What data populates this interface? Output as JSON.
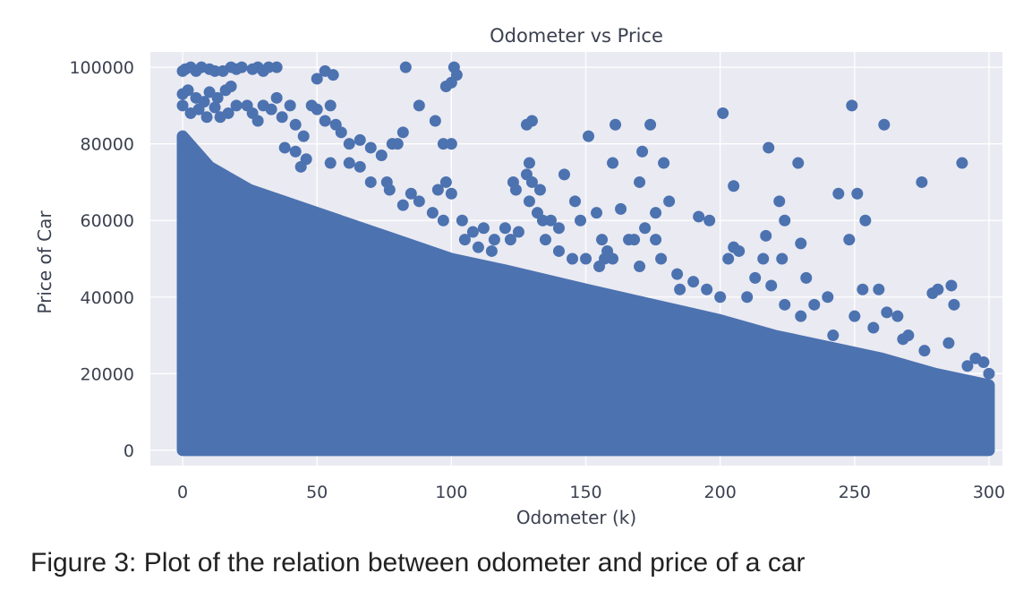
{
  "chart_data": {
    "type": "scatter",
    "title": "Odometer vs Price",
    "xlabel": "Odometer (k)",
    "ylabel": "Price of Car",
    "xlim": [
      -12,
      305
    ],
    "ylim": [
      -4000,
      104000
    ],
    "xticks": [
      0,
      50,
      100,
      150,
      200,
      250,
      300
    ],
    "yticks": [
      0,
      20000,
      40000,
      60000,
      80000,
      100000
    ],
    "grid": true,
    "background": "#eaeaf2",
    "marker_color": "#4c72b0",
    "upper_envelope": [
      [
        0,
        82000
      ],
      [
        10,
        74000
      ],
      [
        25,
        68000
      ],
      [
        50,
        62000
      ],
      [
        75,
        56000
      ],
      [
        100,
        50000
      ],
      [
        120,
        47000
      ],
      [
        150,
        42000
      ],
      [
        175,
        38000
      ],
      [
        200,
        34000
      ],
      [
        220,
        30000
      ],
      [
        240,
        27000
      ],
      [
        260,
        24000
      ],
      [
        280,
        20000
      ],
      [
        300,
        17000
      ]
    ],
    "points": [
      [
        0,
        99000
      ],
      [
        1,
        99500
      ],
      [
        3,
        100000
      ],
      [
        5,
        99000
      ],
      [
        7,
        100000
      ],
      [
        10,
        99500
      ],
      [
        12,
        99000
      ],
      [
        15,
        99000
      ],
      [
        18,
        100000
      ],
      [
        20,
        99500
      ],
      [
        22,
        100000
      ],
      [
        26,
        99500
      ],
      [
        28,
        100000
      ],
      [
        30,
        99000
      ],
      [
        32,
        100000
      ],
      [
        35,
        100000
      ],
      [
        0,
        93000
      ],
      [
        2,
        94000
      ],
      [
        5,
        92000
      ],
      [
        8,
        91000
      ],
      [
        10,
        93500
      ],
      [
        13,
        92000
      ],
      [
        16,
        94000
      ],
      [
        18,
        95000
      ],
      [
        0,
        90000
      ],
      [
        3,
        88000
      ],
      [
        6,
        89000
      ],
      [
        9,
        87000
      ],
      [
        12,
        89500
      ],
      [
        14,
        87000
      ],
      [
        17,
        88000
      ],
      [
        20,
        90000
      ],
      [
        24,
        90000
      ],
      [
        26,
        88000
      ],
      [
        28,
        86000
      ],
      [
        30,
        90000
      ],
      [
        33,
        89000
      ],
      [
        35,
        92000
      ],
      [
        37,
        87000
      ],
      [
        40,
        90000
      ],
      [
        42,
        85000
      ],
      [
        45,
        82000
      ],
      [
        48,
        90000
      ],
      [
        50,
        89000
      ],
      [
        53,
        86000
      ],
      [
        55,
        90000
      ],
      [
        57,
        85000
      ],
      [
        59,
        83000
      ],
      [
        50,
        97000
      ],
      [
        53,
        99000
      ],
      [
        56,
        98000
      ],
      [
        83,
        100000
      ],
      [
        101,
        100000
      ],
      [
        102,
        98000
      ],
      [
        98,
        95000
      ],
      [
        100,
        96000
      ],
      [
        88,
        90000
      ],
      [
        94,
        86000
      ],
      [
        82,
        83000
      ],
      [
        78,
        80000
      ],
      [
        80,
        80000
      ],
      [
        97,
        80000
      ],
      [
        100,
        80000
      ],
      [
        62,
        80000
      ],
      [
        66,
        81000
      ],
      [
        70,
        79000
      ],
      [
        74,
        77000
      ],
      [
        42,
        78000
      ],
      [
        46,
        76000
      ],
      [
        38,
        79000
      ],
      [
        44,
        74000
      ],
      [
        55,
        75000
      ],
      [
        62,
        75000
      ],
      [
        66,
        74000
      ],
      [
        70,
        70000
      ],
      [
        76,
        70000
      ],
      [
        77,
        68000
      ],
      [
        98,
        70000
      ],
      [
        100,
        67000
      ],
      [
        95,
        68000
      ],
      [
        85,
        67000
      ],
      [
        88,
        65000
      ],
      [
        82,
        64000
      ],
      [
        93,
        62000
      ],
      [
        97,
        60000
      ],
      [
        104,
        60000
      ],
      [
        108,
        57000
      ],
      [
        112,
        58000
      ],
      [
        105,
        55000
      ],
      [
        116,
        55000
      ],
      [
        120,
        58000
      ],
      [
        125,
        57000
      ],
      [
        122,
        55000
      ],
      [
        123,
        70000
      ],
      [
        124,
        68000
      ],
      [
        128,
        85000
      ],
      [
        130,
        86000
      ],
      [
        129,
        75000
      ],
      [
        128,
        72000
      ],
      [
        130,
        70000
      ],
      [
        133,
        68000
      ],
      [
        129,
        65000
      ],
      [
        134,
        60000
      ],
      [
        132,
        62000
      ],
      [
        137,
        60000
      ],
      [
        140,
        58000
      ],
      [
        142,
        72000
      ],
      [
        146,
        65000
      ],
      [
        148,
        60000
      ],
      [
        151,
        82000
      ],
      [
        156,
        55000
      ],
      [
        158,
        52000
      ],
      [
        154,
        62000
      ],
      [
        150,
        50000
      ],
      [
        157,
        50000
      ],
      [
        161,
        85000
      ],
      [
        160,
        75000
      ],
      [
        163,
        63000
      ],
      [
        166,
        55000
      ],
      [
        168,
        55000
      ],
      [
        170,
        70000
      ],
      [
        171,
        78000
      ],
      [
        172,
        58000
      ],
      [
        174,
        85000
      ],
      [
        176,
        62000
      ],
      [
        176,
        55000
      ],
      [
        178,
        50000
      ],
      [
        179,
        75000
      ],
      [
        181,
        65000
      ],
      [
        184,
        46000
      ],
      [
        192,
        61000
      ],
      [
        196,
        60000
      ],
      [
        201,
        88000
      ],
      [
        205,
        69000
      ],
      [
        205,
        53000
      ],
      [
        207,
        52000
      ],
      [
        203,
        50000
      ],
      [
        213,
        45000
      ],
      [
        216,
        50000
      ],
      [
        217,
        56000
      ],
      [
        218,
        79000
      ],
      [
        219,
        43000
      ],
      [
        222,
        65000
      ],
      [
        224,
        60000
      ],
      [
        223,
        50000
      ],
      [
        224,
        38000
      ],
      [
        229,
        75000
      ],
      [
        230,
        54000
      ],
      [
        232,
        45000
      ],
      [
        244,
        67000
      ],
      [
        248,
        55000
      ],
      [
        249,
        90000
      ],
      [
        251,
        67000
      ],
      [
        253,
        42000
      ],
      [
        254,
        60000
      ],
      [
        261,
        85000
      ],
      [
        259,
        42000
      ],
      [
        266,
        35000
      ],
      [
        275,
        70000
      ],
      [
        279,
        41000
      ],
      [
        281,
        42000
      ],
      [
        286,
        43000
      ],
      [
        287,
        38000
      ],
      [
        290,
        75000
      ],
      [
        240,
        40000
      ],
      [
        250,
        35000
      ],
      [
        270,
        30000
      ],
      [
        285,
        28000
      ],
      [
        295,
        24000
      ],
      [
        298,
        23000
      ],
      [
        262,
        36000
      ],
      [
        230,
        35000
      ],
      [
        235,
        38000
      ],
      [
        210,
        40000
      ],
      [
        195,
        42000
      ],
      [
        190,
        44000
      ],
      [
        160,
        50000
      ],
      [
        170,
        48000
      ],
      [
        145,
        50000
      ],
      [
        140,
        52000
      ],
      [
        110,
        53000
      ],
      [
        115,
        52000
      ],
      [
        135,
        55000
      ],
      [
        155,
        48000
      ],
      [
        185,
        42000
      ],
      [
        200,
        40000
      ],
      [
        242,
        30000
      ],
      [
        276,
        26000
      ],
      [
        292,
        22000
      ],
      [
        300,
        20000
      ],
      [
        268,
        29000
      ],
      [
        257,
        32000
      ]
    ]
  },
  "caption": "Figure 3: Plot of the relation between odometer and price of a car"
}
